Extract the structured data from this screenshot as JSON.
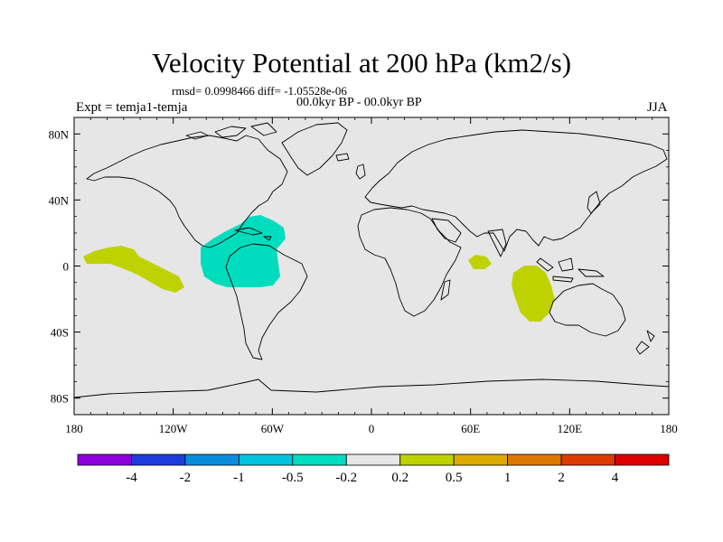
{
  "title": "Velocity Potential at 200 hPa (km2/s)",
  "stats": "rmsd= 0.0998466 diff= -1.05528e-06",
  "experiment": "Expt = temja1-temja",
  "period": "00.0kyr BP - 00.0kyr BP",
  "season": "JJA",
  "map": {
    "background_color": "#e6e6e6",
    "lon_ticks": [
      {
        "lon": -180,
        "label": "180"
      },
      {
        "lon": -120,
        "label": "120W"
      },
      {
        "lon": -60,
        "label": "60W"
      },
      {
        "lon": 0,
        "label": "0"
      },
      {
        "lon": 60,
        "label": "60E"
      },
      {
        "lon": 120,
        "label": "120E"
      },
      {
        "lon": 180,
        "label": "180"
      }
    ],
    "lat_ticks": [
      {
        "lat": 80,
        "label": "80N"
      },
      {
        "lat": 40,
        "label": "40N"
      },
      {
        "lat": 0,
        "label": "0"
      },
      {
        "lat": -40,
        "label": "40S"
      },
      {
        "lat": -80,
        "label": "80S"
      }
    ],
    "anomaly_regions": [
      {
        "name": "central-pacific",
        "category": "0.2 to 0.5",
        "color": "#bed200"
      },
      {
        "name": "tropical-americas",
        "category": "-0.5 to -0.2",
        "color": "#00dcbe"
      },
      {
        "name": "western-indian-ocean",
        "category": "0.2 to 0.5",
        "color": "#bed200"
      },
      {
        "name": "eastern-indian-ocean",
        "category": "0.2 to 0.5",
        "color": "#bed200"
      }
    ]
  },
  "colorbar": {
    "colors": [
      "#8c00dc",
      "#1e3cdc",
      "#0a8cdc",
      "#00c3dc",
      "#00dcbe",
      "#e6e6e6",
      "#bed200",
      "#dcaa00",
      "#dc7800",
      "#dc3c00",
      "#dc0000"
    ],
    "labels": [
      "-4",
      "-2",
      "-1",
      "-0.5",
      "-0.2",
      "0.2",
      "0.5",
      "1",
      "2",
      "4"
    ]
  }
}
